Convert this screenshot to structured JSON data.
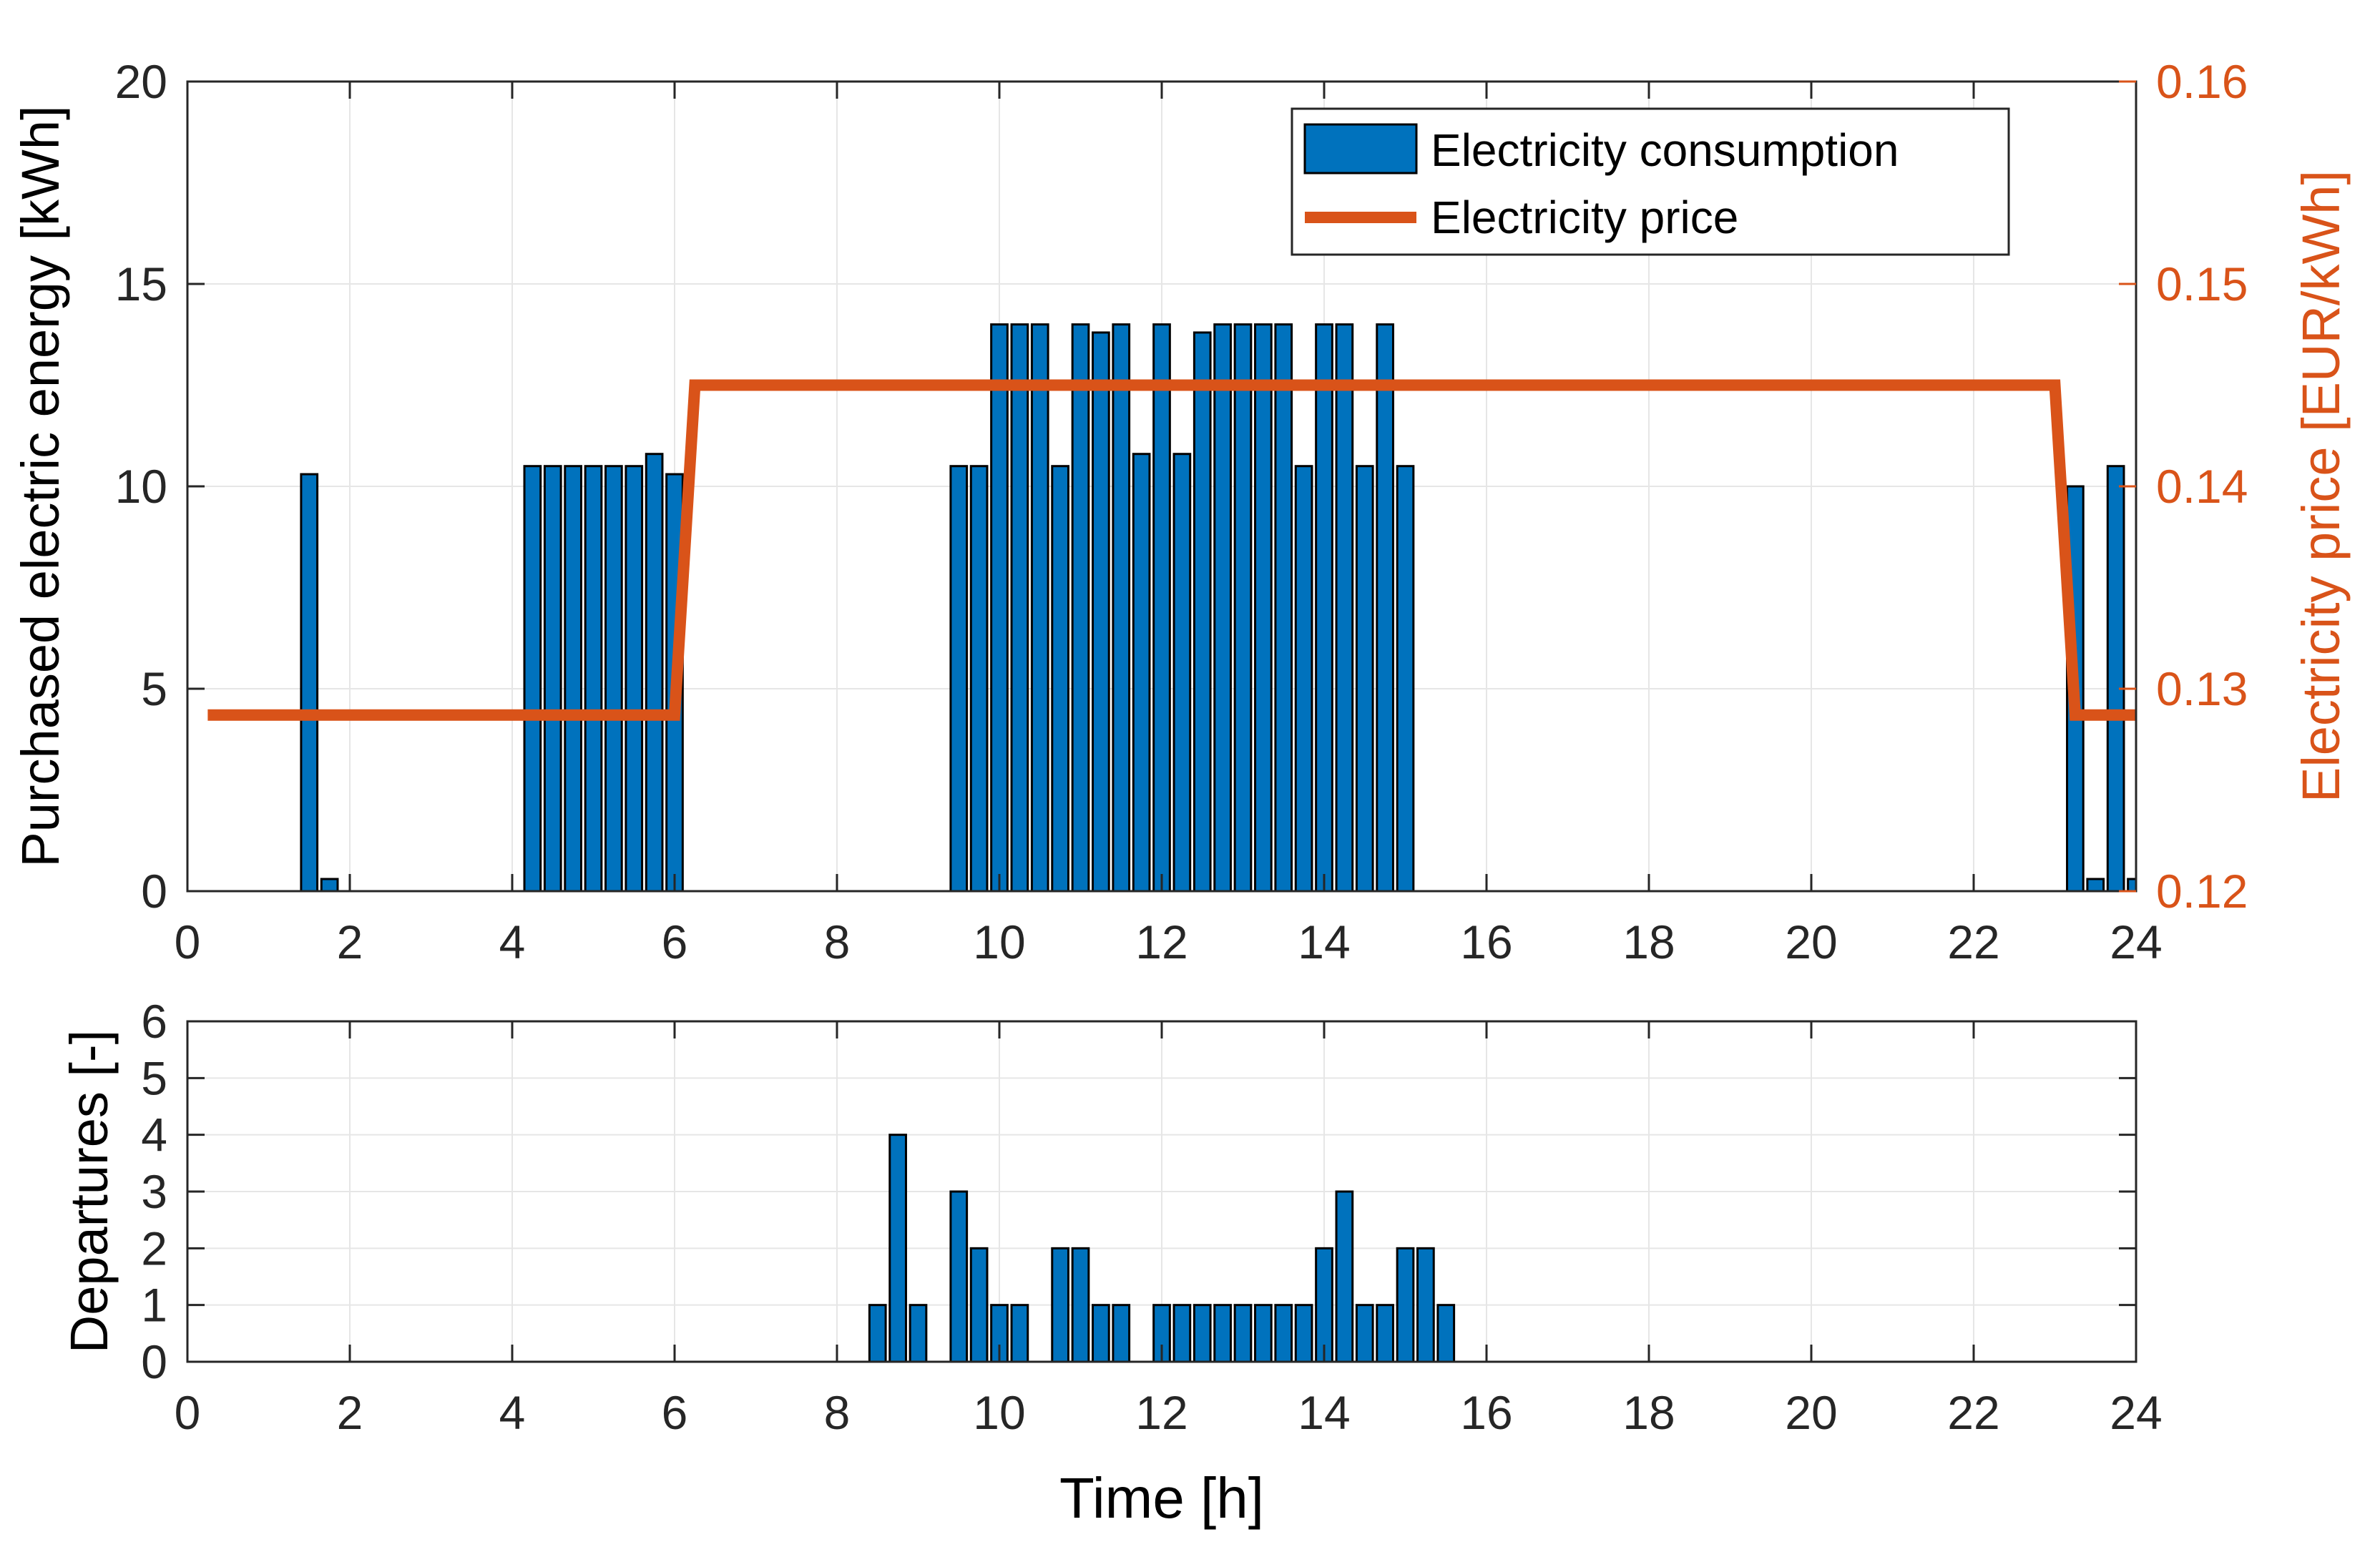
{
  "chart_data": [
    {
      "type": "bar",
      "title": "",
      "xlabel": "",
      "ylabel": "Purchased electric energy [kWh]",
      "y2label": "Electricity price [EUR/kWh]",
      "xlim": [
        0,
        24
      ],
      "ylim": [
        0,
        20
      ],
      "y2lim": [
        0.12,
        0.16
      ],
      "xticks": [
        0,
        2,
        4,
        6,
        8,
        10,
        12,
        14,
        16,
        18,
        20,
        22,
        24
      ],
      "yticks": [
        0,
        5,
        10,
        15,
        20
      ],
      "y2ticks": [
        "0.12",
        "0.13",
        "0.14",
        "0.15",
        "0.16"
      ],
      "grid": true,
      "legend_position": "top-right",
      "bar_color": "#0072BD",
      "line_color": "#D95319",
      "series": [
        {
          "name": "Electricity consumption",
          "kind": "bar",
          "x": [
            1.5,
            1.75,
            4.25,
            4.5,
            4.75,
            5.0,
            5.25,
            5.5,
            5.75,
            6.0,
            9.5,
            9.75,
            10.0,
            10.25,
            10.5,
            10.75,
            11.0,
            11.25,
            11.5,
            11.75,
            12.0,
            12.25,
            12.5,
            12.75,
            13.0,
            13.25,
            13.5,
            13.75,
            14.0,
            14.25,
            14.5,
            14.75,
            15.0,
            23.25,
            23.5,
            23.75,
            24.0
          ],
          "values": [
            10.3,
            0.3,
            10.5,
            10.5,
            10.5,
            10.5,
            10.5,
            10.5,
            10.8,
            10.3,
            10.5,
            10.5,
            14.0,
            14.0,
            14.0,
            10.5,
            14.0,
            13.8,
            14.0,
            10.8,
            14.0,
            10.8,
            13.8,
            14.0,
            14.0,
            14.0,
            14.0,
            10.5,
            14.0,
            14.0,
            10.5,
            14.0,
            10.5,
            10.0,
            0.3,
            10.5,
            0.3
          ]
        },
        {
          "name": "Electricity price",
          "kind": "line",
          "axis": "right",
          "x": [
            0.25,
            6.0,
            6.25,
            23.0,
            23.25,
            24.0
          ],
          "values": [
            0.1287,
            0.1287,
            0.145,
            0.145,
            0.1287,
            0.1287
          ]
        }
      ]
    },
    {
      "type": "bar",
      "title": "",
      "xlabel": "Time [h]",
      "ylabel": "Departures [-]",
      "xlim": [
        0,
        24
      ],
      "ylim": [
        0,
        6
      ],
      "xticks": [
        0,
        2,
        4,
        6,
        8,
        10,
        12,
        14,
        16,
        18,
        20,
        22,
        24
      ],
      "yticks": [
        0,
        1,
        2,
        3,
        4,
        5,
        6
      ],
      "grid": true,
      "bar_color": "#0072BD",
      "series": [
        {
          "name": "Departures",
          "kind": "bar",
          "x": [
            8.5,
            8.75,
            9.0,
            9.5,
            9.75,
            10.0,
            10.25,
            10.75,
            11.0,
            11.25,
            11.5,
            12.0,
            12.25,
            12.5,
            12.75,
            13.0,
            13.25,
            13.5,
            13.75,
            14.0,
            14.25,
            14.5,
            14.75,
            15.0,
            15.25,
            15.5
          ],
          "values": [
            1,
            4,
            1,
            3,
            2,
            1,
            1,
            2,
            2,
            1,
            1,
            1,
            1,
            1,
            1,
            1,
            1,
            1,
            1,
            2,
            3,
            1,
            1,
            2,
            2,
            1
          ]
        }
      ]
    }
  ]
}
